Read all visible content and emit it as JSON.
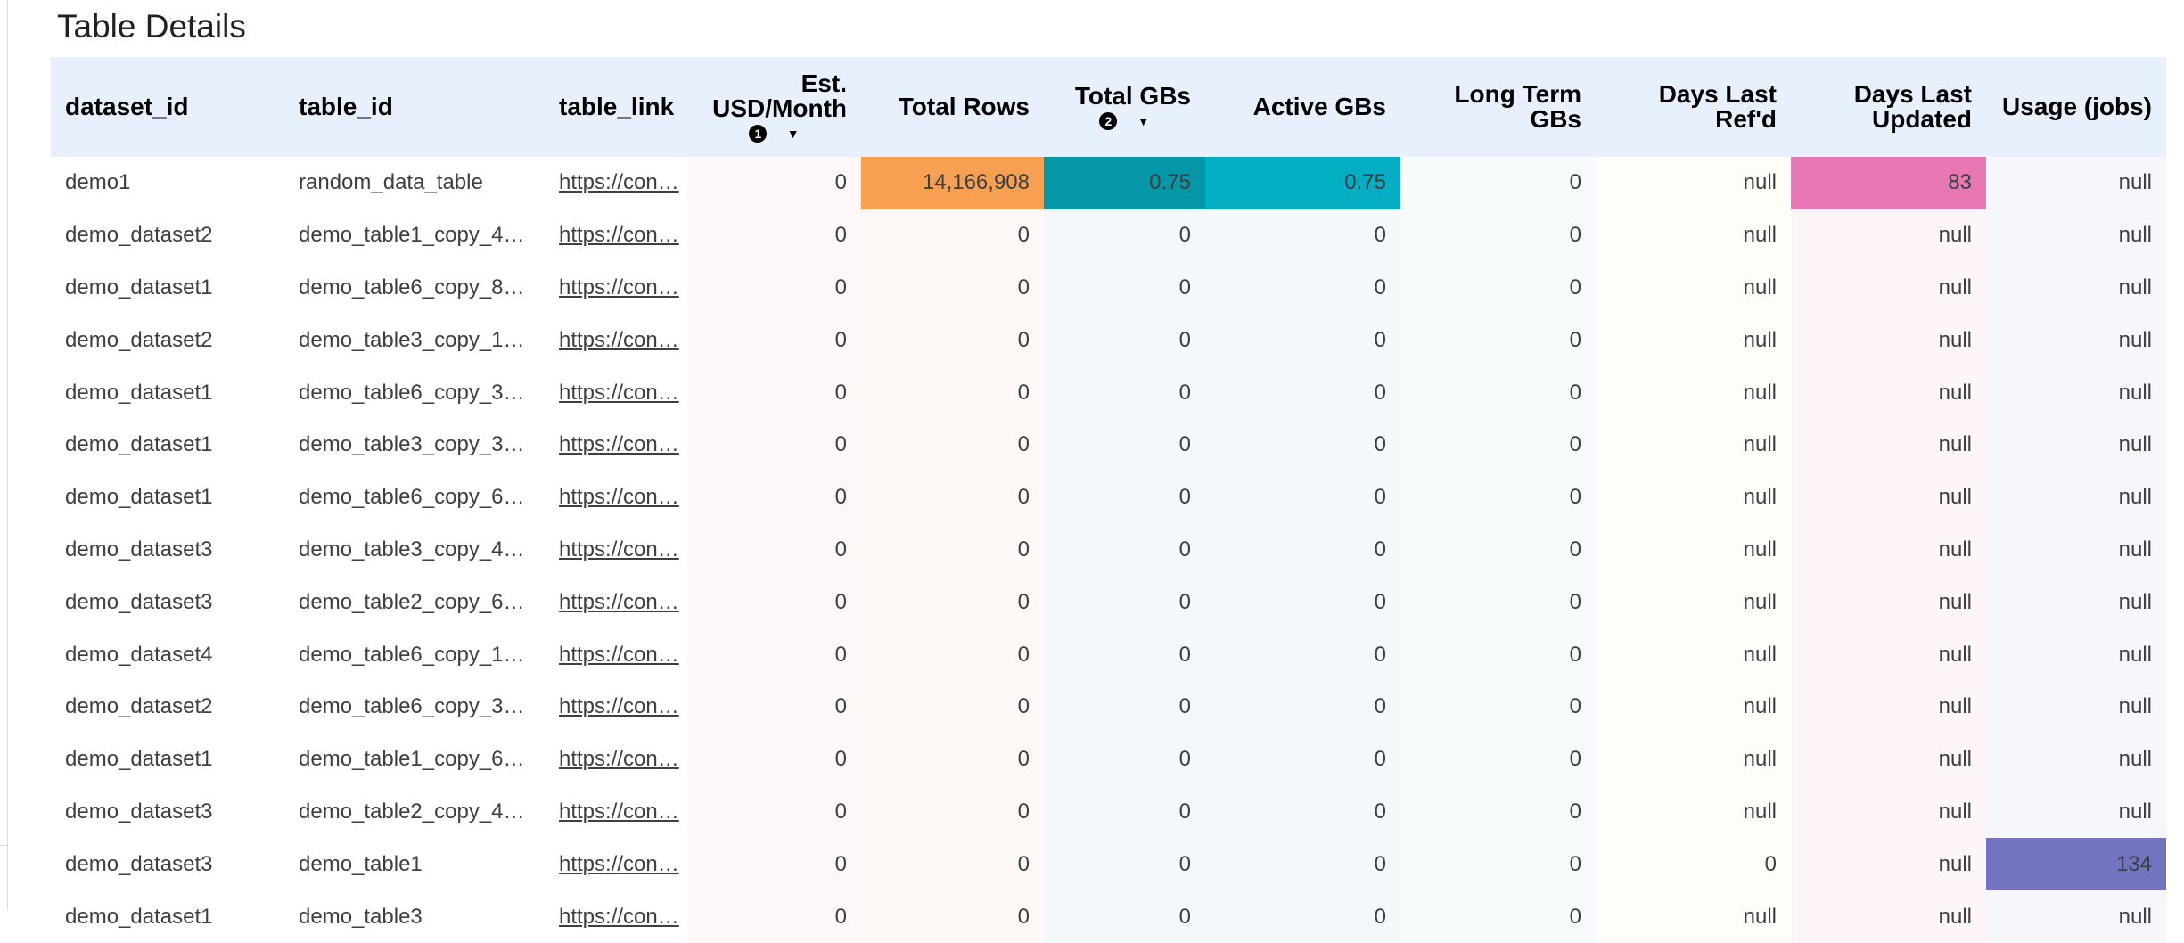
{
  "title": "Table Details",
  "columns": [
    {
      "key": "dataset_id",
      "label": "dataset_id"
    },
    {
      "key": "table_id",
      "label": "table_id"
    },
    {
      "key": "table_link",
      "label": "table_link"
    },
    {
      "key": "usd",
      "label": "Est. USD/Month",
      "sort_index": "1",
      "sort_direction": "descending"
    },
    {
      "key": "rows",
      "label": "Total Rows"
    },
    {
      "key": "tgb",
      "label": "Total GBs",
      "sort_index": "2",
      "sort_direction": "descending"
    },
    {
      "key": "agb",
      "label": "Active GBs"
    },
    {
      "key": "ltgb",
      "label": "Long Term GBs"
    },
    {
      "key": "ref",
      "label": "Days Last Ref'd"
    },
    {
      "key": "upd",
      "label": "Days Last Updated"
    },
    {
      "key": "usage",
      "label": "Usage (jobs)"
    }
  ],
  "icons": {
    "sort_arrow": "caret-down-icon",
    "sort_badge": "sort-order-badge-icon"
  },
  "highlight_colors": {
    "rows": "#f7a052",
    "tgb": "#0597a8",
    "agb": "#03aec5",
    "upd": "#e878b4",
    "usage": "#7373c0"
  },
  "rows": [
    [
      "demo1",
      "random_data_table",
      "https://con…",
      "0",
      "14,166,908",
      "0.75",
      "0.75",
      "0",
      "null",
      "83",
      "null"
    ],
    [
      "demo_dataset2",
      "demo_table1_copy_4…",
      "https://con…",
      "0",
      "0",
      "0",
      "0",
      "0",
      "null",
      "null",
      "null"
    ],
    [
      "demo_dataset1",
      "demo_table6_copy_8…",
      "https://con…",
      "0",
      "0",
      "0",
      "0",
      "0",
      "null",
      "null",
      "null"
    ],
    [
      "demo_dataset2",
      "demo_table3_copy_1…",
      "https://con…",
      "0",
      "0",
      "0",
      "0",
      "0",
      "null",
      "null",
      "null"
    ],
    [
      "demo_dataset1",
      "demo_table6_copy_3…",
      "https://con…",
      "0",
      "0",
      "0",
      "0",
      "0",
      "null",
      "null",
      "null"
    ],
    [
      "demo_dataset1",
      "demo_table3_copy_3…",
      "https://con…",
      "0",
      "0",
      "0",
      "0",
      "0",
      "null",
      "null",
      "null"
    ],
    [
      "demo_dataset1",
      "demo_table6_copy_6…",
      "https://con…",
      "0",
      "0",
      "0",
      "0",
      "0",
      "null",
      "null",
      "null"
    ],
    [
      "demo_dataset3",
      "demo_table3_copy_4…",
      "https://con…",
      "0",
      "0",
      "0",
      "0",
      "0",
      "null",
      "null",
      "null"
    ],
    [
      "demo_dataset3",
      "demo_table2_copy_6…",
      "https://con…",
      "0",
      "0",
      "0",
      "0",
      "0",
      "null",
      "null",
      "null"
    ],
    [
      "demo_dataset4",
      "demo_table6_copy_1…",
      "https://con…",
      "0",
      "0",
      "0",
      "0",
      "0",
      "null",
      "null",
      "null"
    ],
    [
      "demo_dataset2",
      "demo_table6_copy_3…",
      "https://con…",
      "0",
      "0",
      "0",
      "0",
      "0",
      "null",
      "null",
      "null"
    ],
    [
      "demo_dataset1",
      "demo_table1_copy_6…",
      "https://con…",
      "0",
      "0",
      "0",
      "0",
      "0",
      "null",
      "null",
      "null"
    ],
    [
      "demo_dataset3",
      "demo_table2_copy_4…",
      "https://con…",
      "0",
      "0",
      "0",
      "0",
      "0",
      "null",
      "null",
      "null"
    ],
    [
      "demo_dataset3",
      "demo_table1",
      "https://con…",
      "0",
      "0",
      "0",
      "0",
      "0",
      "0",
      "null",
      "134"
    ],
    [
      "demo_dataset1",
      "demo_table3",
      "https://con…",
      "0",
      "0",
      "0",
      "0",
      "0",
      "null",
      "null",
      "null"
    ]
  ]
}
